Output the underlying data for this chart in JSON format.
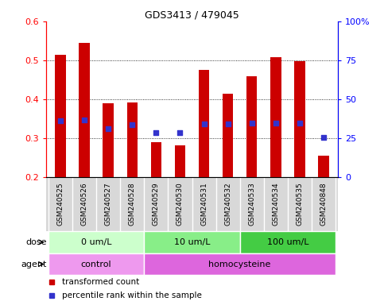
{
  "title": "GDS3413 / 479045",
  "samples": [
    "GSM240525",
    "GSM240526",
    "GSM240527",
    "GSM240528",
    "GSM240529",
    "GSM240530",
    "GSM240531",
    "GSM240532",
    "GSM240533",
    "GSM240534",
    "GSM240535",
    "GSM240848"
  ],
  "transformed_counts": [
    0.515,
    0.545,
    0.39,
    0.393,
    0.29,
    0.283,
    0.475,
    0.415,
    0.46,
    0.508,
    0.498,
    0.255
  ],
  "percentile_ranks": [
    0.345,
    0.347,
    0.325,
    0.335,
    0.315,
    0.315,
    0.338,
    0.337,
    0.34,
    0.34,
    0.34,
    0.302
  ],
  "y_min": 0.2,
  "y_max": 0.6,
  "bar_color": "#CC0000",
  "dot_color": "#3333CC",
  "bar_width": 0.45,
  "dose_groups": [
    {
      "label": "0 um/L",
      "start": 0,
      "end": 4,
      "color": "#ccffcc"
    },
    {
      "label": "10 um/L",
      "start": 4,
      "end": 8,
      "color": "#88ee88"
    },
    {
      "label": "100 um/L",
      "start": 8,
      "end": 12,
      "color": "#44cc44"
    }
  ],
  "agent_groups": [
    {
      "label": "control",
      "start": 0,
      "end": 4,
      "color": "#ee99ee"
    },
    {
      "label": "homocysteine",
      "start": 4,
      "end": 12,
      "color": "#dd66dd"
    }
  ],
  "dose_label": "dose",
  "agent_label": "agent",
  "legend_items": [
    {
      "label": "transformed count",
      "color": "#CC0000"
    },
    {
      "label": "percentile rank within the sample",
      "color": "#3333CC"
    }
  ],
  "left_yticks": [
    0.2,
    0.3,
    0.4,
    0.5,
    0.6
  ],
  "left_ylabels": [
    "0.2",
    "0.3",
    "0.4",
    "0.5",
    "0.6"
  ],
  "right_pct": [
    0,
    25,
    50,
    75,
    100
  ],
  "right_ylabels": [
    "0",
    "25",
    "50",
    "75",
    "100%"
  ],
  "grid_lines": [
    0.3,
    0.4,
    0.5
  ]
}
